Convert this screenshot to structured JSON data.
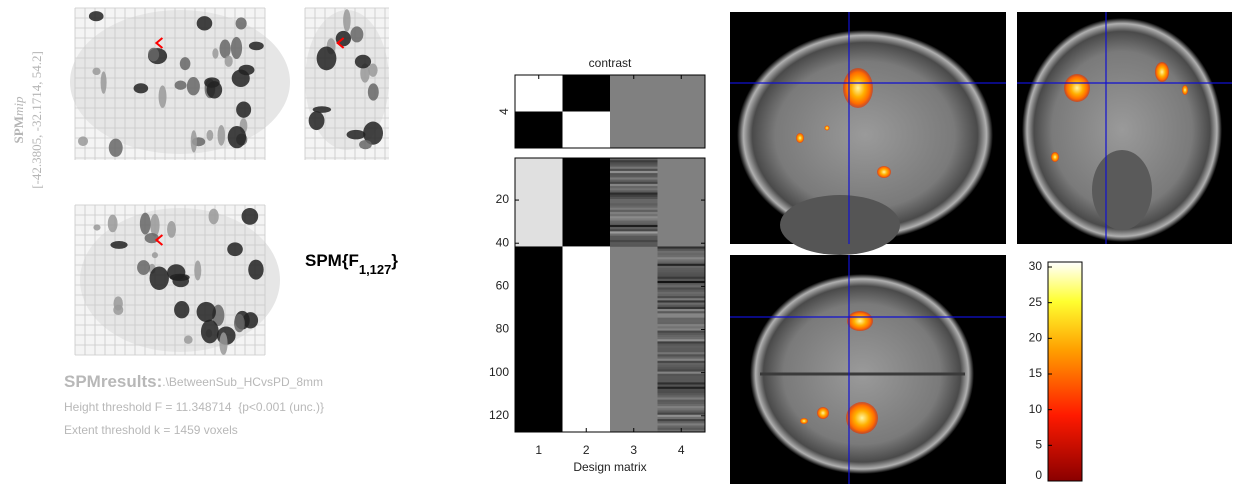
{
  "mip": {
    "title_bold": "SPM",
    "title_italic": "mip",
    "coordinates": "[-42.3805, -32.1714, 54.2]"
  },
  "statistic": {
    "prefix": "SPM{F",
    "subscript": "1,127",
    "suffix": "}"
  },
  "results": {
    "heading": "SPMresults:",
    "path": ".\\BetweenSub_HCvsPD_8mm",
    "height_threshold": "Height threshold F = 11.348714  {p<0.001 (unc.)}",
    "extent_threshold": "Extent threshold k = 1459 voxels"
  },
  "design_matrix": {
    "contrast_title": "contrast",
    "contrast_yticks": [
      4
    ],
    "xlabel": "Design matrix",
    "xticks": [
      1,
      2,
      3,
      4
    ],
    "xlim": [
      0.5,
      4.5
    ],
    "yticks": [
      20,
      40,
      60,
      80,
      100,
      120
    ],
    "ylim": [
      0.5,
      127.5
    ]
  },
  "colorbar": {
    "clim": [
      0,
      30.7
    ],
    "ticks": [
      0,
      5,
      10,
      15,
      20,
      25,
      30
    ]
  }
}
